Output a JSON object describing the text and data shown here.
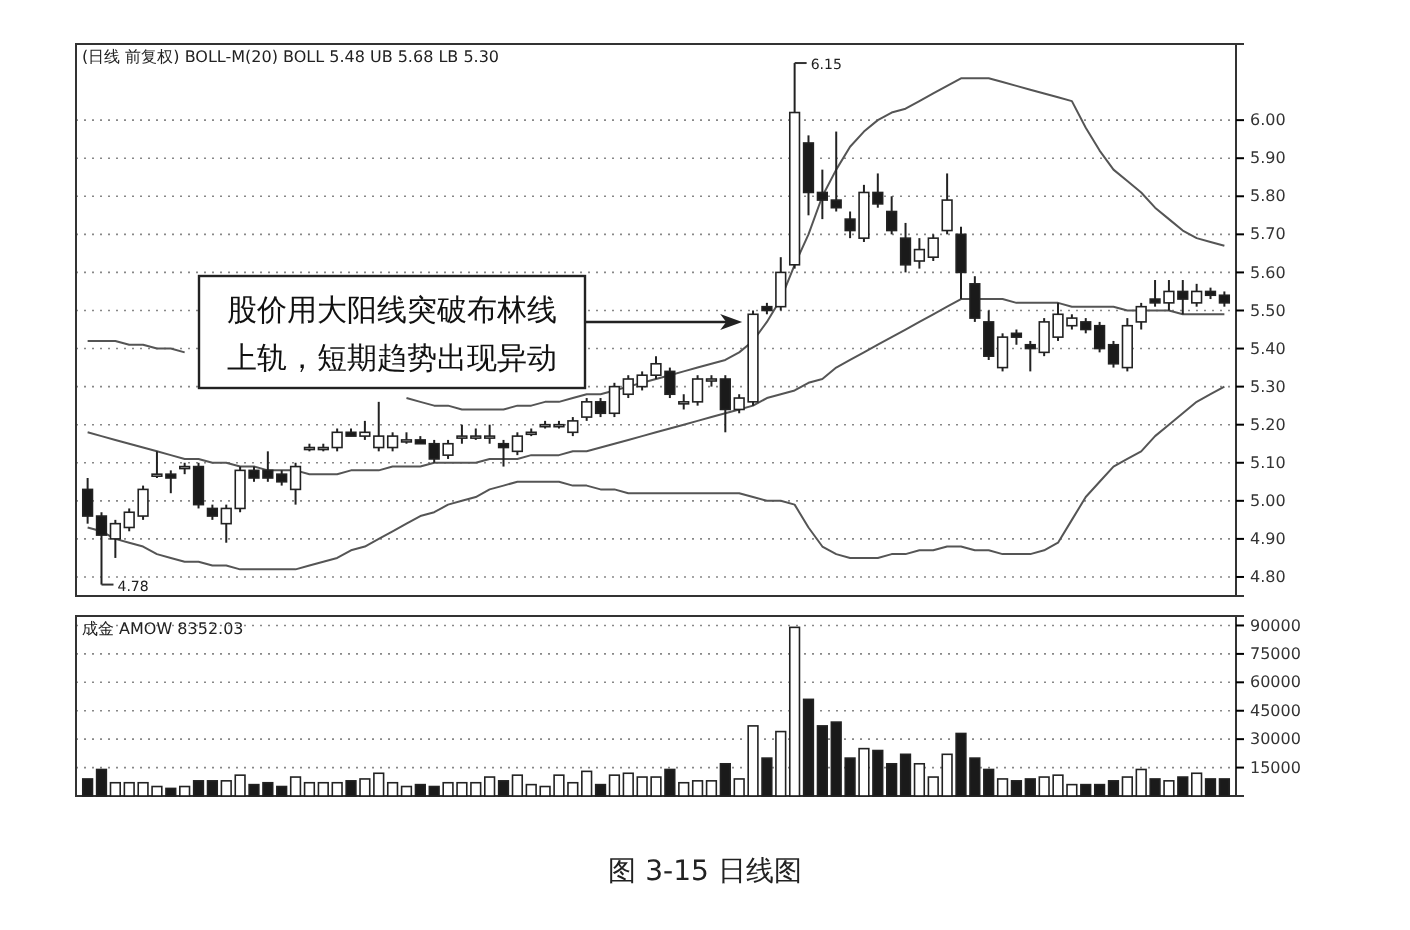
{
  "chart_data": [
    {
      "type": "candlestick",
      "title": "(日线 前复权) BOLL-M(20) BOLL 5.48 UB 5.68 LB 5.30",
      "categories": [
        null,
        null,
        null,
        null,
        null,
        null,
        null,
        null,
        null,
        null,
        null,
        null,
        null,
        null,
        null,
        null,
        null,
        null,
        null,
        null,
        null,
        null,
        null,
        null,
        null,
        null,
        null,
        null,
        null,
        null,
        null,
        null,
        null,
        null,
        null,
        null,
        null,
        null,
        null,
        null,
        null,
        null,
        null,
        null,
        null,
        null,
        null,
        null,
        null,
        null,
        null,
        null,
        null,
        null,
        null,
        null,
        null,
        null,
        null,
        null,
        null,
        null,
        null,
        null,
        null,
        null,
        null,
        null,
        null,
        null,
        null,
        null,
        null,
        null,
        null,
        null,
        null,
        null,
        null,
        null,
        null,
        null,
        null
      ],
      "ohlc": [
        [
          5.03,
          5.06,
          4.94,
          4.96
        ],
        [
          4.96,
          4.97,
          4.78,
          4.91
        ],
        [
          4.9,
          4.95,
          4.85,
          4.94
        ],
        [
          4.93,
          4.98,
          4.92,
          4.97
        ],
        [
          4.96,
          5.04,
          4.95,
          5.03
        ],
        [
          5.07,
          5.13,
          5.06,
          5.07
        ],
        [
          5.07,
          5.08,
          5.02,
          5.06
        ],
        [
          5.09,
          5.1,
          5.07,
          5.09
        ],
        [
          5.09,
          5.1,
          4.98,
          4.99
        ],
        [
          4.98,
          4.99,
          4.95,
          4.96
        ],
        [
          4.94,
          4.99,
          4.89,
          4.98
        ],
        [
          4.98,
          5.09,
          4.97,
          5.08
        ],
        [
          5.08,
          5.09,
          5.05,
          5.06
        ],
        [
          5.08,
          5.13,
          5.05,
          5.06
        ],
        [
          5.07,
          5.08,
          5.04,
          5.05
        ],
        [
          5.03,
          5.1,
          4.99,
          5.09
        ],
        [
          5.14,
          5.15,
          5.13,
          5.14
        ],
        [
          5.14,
          5.15,
          5.13,
          5.14
        ],
        [
          5.14,
          5.19,
          5.13,
          5.18
        ],
        [
          5.18,
          5.19,
          5.17,
          5.17
        ],
        [
          5.17,
          5.21,
          5.16,
          5.18
        ],
        [
          5.14,
          5.26,
          5.13,
          5.17
        ],
        [
          5.14,
          5.18,
          5.13,
          5.17
        ],
        [
          5.16,
          5.18,
          5.15,
          5.16
        ],
        [
          5.16,
          5.17,
          5.15,
          5.15
        ],
        [
          5.15,
          5.16,
          5.1,
          5.11
        ],
        [
          5.12,
          5.16,
          5.11,
          5.15
        ],
        [
          5.17,
          5.2,
          5.15,
          5.17
        ],
        [
          5.17,
          5.19,
          5.16,
          5.17
        ],
        [
          5.17,
          5.2,
          5.15,
          5.17
        ],
        [
          5.15,
          5.16,
          5.09,
          5.14
        ],
        [
          5.13,
          5.18,
          5.12,
          5.17
        ],
        [
          5.18,
          5.19,
          5.17,
          5.18
        ],
        [
          5.2,
          5.21,
          5.19,
          5.2
        ],
        [
          5.2,
          5.21,
          5.19,
          5.2
        ],
        [
          5.18,
          5.22,
          5.17,
          5.21
        ],
        [
          5.22,
          5.27,
          5.21,
          5.26
        ],
        [
          5.26,
          5.27,
          5.22,
          5.23
        ],
        [
          5.23,
          5.31,
          5.22,
          5.3
        ],
        [
          5.28,
          5.33,
          5.27,
          5.32
        ],
        [
          5.3,
          5.34,
          5.29,
          5.33
        ],
        [
          5.33,
          5.38,
          5.32,
          5.36
        ],
        [
          5.34,
          5.35,
          5.27,
          5.28
        ],
        [
          5.26,
          5.28,
          5.24,
          5.26
        ],
        [
          5.26,
          5.33,
          5.25,
          5.32
        ],
        [
          5.32,
          5.33,
          5.3,
          5.32
        ],
        [
          5.32,
          5.33,
          5.18,
          5.24
        ],
        [
          5.24,
          5.28,
          5.23,
          5.27
        ],
        [
          5.26,
          5.5,
          5.25,
          5.49
        ],
        [
          5.51,
          5.52,
          5.49,
          5.5
        ],
        [
          5.51,
          5.64,
          5.5,
          5.6
        ],
        [
          5.62,
          6.15,
          5.61,
          6.02
        ],
        [
          5.94,
          5.96,
          5.75,
          5.81
        ],
        [
          5.81,
          5.87,
          5.74,
          5.79
        ],
        [
          5.79,
          5.97,
          5.76,
          5.77
        ],
        [
          5.74,
          5.76,
          5.69,
          5.71
        ],
        [
          5.69,
          5.83,
          5.68,
          5.81
        ],
        [
          5.81,
          5.86,
          5.77,
          5.78
        ],
        [
          5.76,
          5.8,
          5.7,
          5.71
        ],
        [
          5.69,
          5.73,
          5.6,
          5.62
        ],
        [
          5.63,
          5.69,
          5.61,
          5.66
        ],
        [
          5.64,
          5.7,
          5.63,
          5.69
        ],
        [
          5.71,
          5.86,
          5.7,
          5.79
        ],
        [
          5.7,
          5.72,
          5.53,
          5.6
        ],
        [
          5.57,
          5.59,
          5.47,
          5.48
        ],
        [
          5.47,
          5.5,
          5.37,
          5.38
        ],
        [
          5.35,
          5.44,
          5.34,
          5.43
        ],
        [
          5.44,
          5.45,
          5.41,
          5.43
        ],
        [
          5.41,
          5.42,
          5.34,
          5.4
        ],
        [
          5.39,
          5.48,
          5.38,
          5.47
        ],
        [
          5.43,
          5.52,
          5.42,
          5.49
        ],
        [
          5.46,
          5.49,
          5.45,
          5.48
        ],
        [
          5.47,
          5.48,
          5.44,
          5.45
        ],
        [
          5.46,
          5.47,
          5.39,
          5.4
        ],
        [
          5.41,
          5.42,
          5.35,
          5.36
        ],
        [
          5.35,
          5.48,
          5.34,
          5.46
        ],
        [
          5.47,
          5.52,
          5.45,
          5.51
        ],
        [
          5.53,
          5.58,
          5.51,
          5.52
        ],
        [
          5.52,
          5.58,
          5.5,
          5.55
        ],
        [
          5.55,
          5.58,
          5.49,
          5.53
        ],
        [
          5.52,
          5.57,
          5.51,
          5.55
        ],
        [
          5.55,
          5.56,
          5.53,
          5.54
        ],
        [
          5.54,
          5.55,
          5.51,
          5.52
        ]
      ],
      "series": [
        {
          "type": "line",
          "color": "#555555",
          "values": [
            5.42,
            5.42,
            5.42,
            5.41,
            5.41,
            5.4,
            5.4,
            5.39,
            null,
            null,
            null,
            null,
            null,
            null,
            null,
            null,
            null,
            null,
            null,
            null,
            null,
            null,
            null,
            5.27,
            5.26,
            5.25,
            5.25,
            5.24,
            5.24,
            5.24,
            5.24,
            5.25,
            5.25,
            5.26,
            5.26,
            5.27,
            5.28,
            5.28,
            5.29,
            5.3,
            5.31,
            5.32,
            5.33,
            5.34,
            5.35,
            5.36,
            5.37,
            5.39,
            5.42,
            5.47,
            5.53,
            5.62,
            5.7,
            5.8,
            5.87,
            5.93,
            5.97,
            6.0,
            6.02,
            6.03,
            6.05,
            6.07,
            6.09,
            6.11,
            6.11,
            6.11,
            6.1,
            6.09,
            6.08,
            6.07,
            6.06,
            6.05,
            5.98,
            5.92,
            5.87,
            5.84,
            5.81,
            5.77,
            5.74,
            5.71,
            5.69,
            5.68,
            5.67
          ]
        },
        {
          "type": "line",
          "color": "#555555",
          "values": [
            5.18,
            5.17,
            5.16,
            5.15,
            5.14,
            5.13,
            5.12,
            5.11,
            5.11,
            5.1,
            5.1,
            5.09,
            5.09,
            5.08,
            5.08,
            5.08,
            5.07,
            5.07,
            5.07,
            5.08,
            5.08,
            5.08,
            5.09,
            5.09,
            5.09,
            5.1,
            5.1,
            5.1,
            5.1,
            5.11,
            5.11,
            5.11,
            5.12,
            5.12,
            5.12,
            5.13,
            5.13,
            5.14,
            5.15,
            5.16,
            5.17,
            5.18,
            5.19,
            5.2,
            5.21,
            5.22,
            5.23,
            5.24,
            5.25,
            5.27,
            5.28,
            5.29,
            5.31,
            5.32,
            5.35,
            5.37,
            5.39,
            5.41,
            5.43,
            5.45,
            5.47,
            5.49,
            5.51,
            5.53,
            5.53,
            5.53,
            5.53,
            5.52,
            5.52,
            5.52,
            5.52,
            5.51,
            5.51,
            5.51,
            5.51,
            5.5,
            5.5,
            5.5,
            5.5,
            5.49,
            5.49,
            5.49,
            5.49
          ]
        },
        {
          "type": "line",
          "color": "#555555",
          "values": [
            4.93,
            4.92,
            4.9,
            4.89,
            4.88,
            4.86,
            4.85,
            4.84,
            4.84,
            4.83,
            4.83,
            4.82,
            4.82,
            4.82,
            4.82,
            4.82,
            4.83,
            4.84,
            4.85,
            4.87,
            4.88,
            4.9,
            4.92,
            4.94,
            4.96,
            4.97,
            4.99,
            5.0,
            5.01,
            5.03,
            5.04,
            5.05,
            5.05,
            5.05,
            5.05,
            5.04,
            5.04,
            5.03,
            5.03,
            5.02,
            5.02,
            5.02,
            5.02,
            5.02,
            5.02,
            5.02,
            5.02,
            5.02,
            5.01,
            5.0,
            5.0,
            4.99,
            4.93,
            4.88,
            4.86,
            4.85,
            4.85,
            4.85,
            4.86,
            4.86,
            4.87,
            4.87,
            4.88,
            4.88,
            4.87,
            4.87,
            4.86,
            4.86,
            4.86,
            4.87,
            4.89,
            4.95,
            5.01,
            5.05,
            5.09,
            5.11,
            5.13,
            5.17,
            5.2,
            5.23,
            5.26,
            5.28,
            5.3
          ]
        }
      ],
      "ylim": [
        4.75,
        6.2
      ],
      "yticks": [
        {
          "value": 4.8,
          "label": "4.80"
        },
        {
          "value": 4.9,
          "label": "4.90"
        },
        {
          "value": 5.0,
          "label": "5.00"
        },
        {
          "value": 5.1,
          "label": "5.10"
        },
        {
          "value": 5.2,
          "label": "5.20"
        },
        {
          "value": 5.3,
          "label": "5.30"
        },
        {
          "value": 5.4,
          "label": "5.40"
        },
        {
          "value": 5.5,
          "label": "5.50"
        },
        {
          "value": 5.6,
          "label": "5.60"
        },
        {
          "value": 5.7,
          "label": "5.70"
        },
        {
          "value": 5.8,
          "label": "5.80"
        },
        {
          "value": 5.9,
          "label": "5.90"
        },
        {
          "value": 6.0,
          "label": "6.00"
        }
      ],
      "grid": "y",
      "tick_labels": "y",
      "annotations": [
        "股价用大阳线突破布林线上轨，短期趋势出现异动",
        "6.15",
        "4.78"
      ]
    },
    {
      "type": "bar",
      "title": "成金 AMOW 8352.03",
      "categories": [
        null,
        null,
        null,
        null,
        null,
        null,
        null,
        null,
        null,
        null,
        null,
        null,
        null,
        null,
        null,
        null,
        null,
        null,
        null,
        null,
        null,
        null,
        null,
        null,
        null,
        null,
        null,
        null,
        null,
        null,
        null,
        null,
        null,
        null,
        null,
        null,
        null,
        null,
        null,
        null,
        null,
        null,
        null,
        null,
        null,
        null,
        null,
        null,
        null,
        null,
        null,
        null,
        null,
        null,
        null,
        null,
        null,
        null,
        null,
        null,
        null,
        null,
        null,
        null,
        null,
        null,
        null,
        null,
        null,
        null,
        null,
        null,
        null,
        null,
        null,
        null,
        null,
        null,
        null,
        null,
        null,
        null,
        null
      ],
      "values": [
        9000,
        14000,
        7000,
        7000,
        7000,
        5000,
        4000,
        5000,
        8000,
        8000,
        8000,
        11000,
        6000,
        7000,
        5000,
        10000,
        7000,
        7000,
        7000,
        8000,
        9000,
        12000,
        7000,
        5000,
        6000,
        5000,
        7000,
        7000,
        7000,
        10000,
        8000,
        11000,
        6000,
        5000,
        11000,
        7000,
        13000,
        6000,
        11000,
        12000,
        10000,
        10000,
        14000,
        7000,
        8000,
        8000,
        17000,
        9000,
        37000,
        20000,
        34000,
        89000,
        51000,
        37000,
        39000,
        20000,
        25000,
        24000,
        17000,
        22000,
        17000,
        10000,
        22000,
        33000,
        20000,
        14000,
        9000,
        8000,
        9000,
        10000,
        11000,
        6000,
        6000,
        6000,
        8000,
        10000,
        14000,
        9000,
        8000,
        10000,
        12000,
        9000,
        9000
      ],
      "colors": [
        "#1a1a1a",
        "#1a1a1a",
        "#ffffff",
        "#ffffff",
        "#ffffff",
        "#ffffff",
        "#1a1a1a",
        "#ffffff",
        "#1a1a1a",
        "#1a1a1a",
        "#ffffff",
        "#ffffff",
        "#1a1a1a",
        "#1a1a1a",
        "#1a1a1a",
        "#ffffff",
        "#ffffff",
        "#ffffff",
        "#ffffff",
        "#1a1a1a",
        "#ffffff",
        "#ffffff",
        "#ffffff",
        "#ffffff",
        "#1a1a1a",
        "#1a1a1a",
        "#ffffff",
        "#ffffff",
        "#ffffff",
        "#ffffff",
        "#1a1a1a",
        "#ffffff",
        "#ffffff",
        "#ffffff",
        "#ffffff",
        "#ffffff",
        "#ffffff",
        "#1a1a1a",
        "#ffffff",
        "#ffffff",
        "#ffffff",
        "#ffffff",
        "#1a1a1a",
        "#ffffff",
        "#ffffff",
        "#ffffff",
        "#1a1a1a",
        "#ffffff",
        "#ffffff",
        "#1a1a1a",
        "#ffffff",
        "#ffffff",
        "#1a1a1a",
        "#1a1a1a",
        "#1a1a1a",
        "#1a1a1a",
        "#ffffff",
        "#1a1a1a",
        "#1a1a1a",
        "#1a1a1a",
        "#ffffff",
        "#ffffff",
        "#ffffff",
        "#1a1a1a",
        "#1a1a1a",
        "#1a1a1a",
        "#ffffff",
        "#1a1a1a",
        "#1a1a1a",
        "#ffffff",
        "#ffffff",
        "#ffffff",
        "#1a1a1a",
        "#1a1a1a",
        "#1a1a1a",
        "#ffffff",
        "#ffffff",
        "#1a1a1a",
        "#ffffff",
        "#1a1a1a",
        "#ffffff",
        "#1a1a1a",
        "#1a1a1a"
      ],
      "ylim": [
        0,
        95000
      ],
      "yticks": [
        15000,
        30000,
        45000,
        60000,
        75000,
        90000
      ],
      "grid": "y",
      "tick_labels": "y",
      "annotations": [
        "图 3-15 日线图"
      ]
    }
  ]
}
